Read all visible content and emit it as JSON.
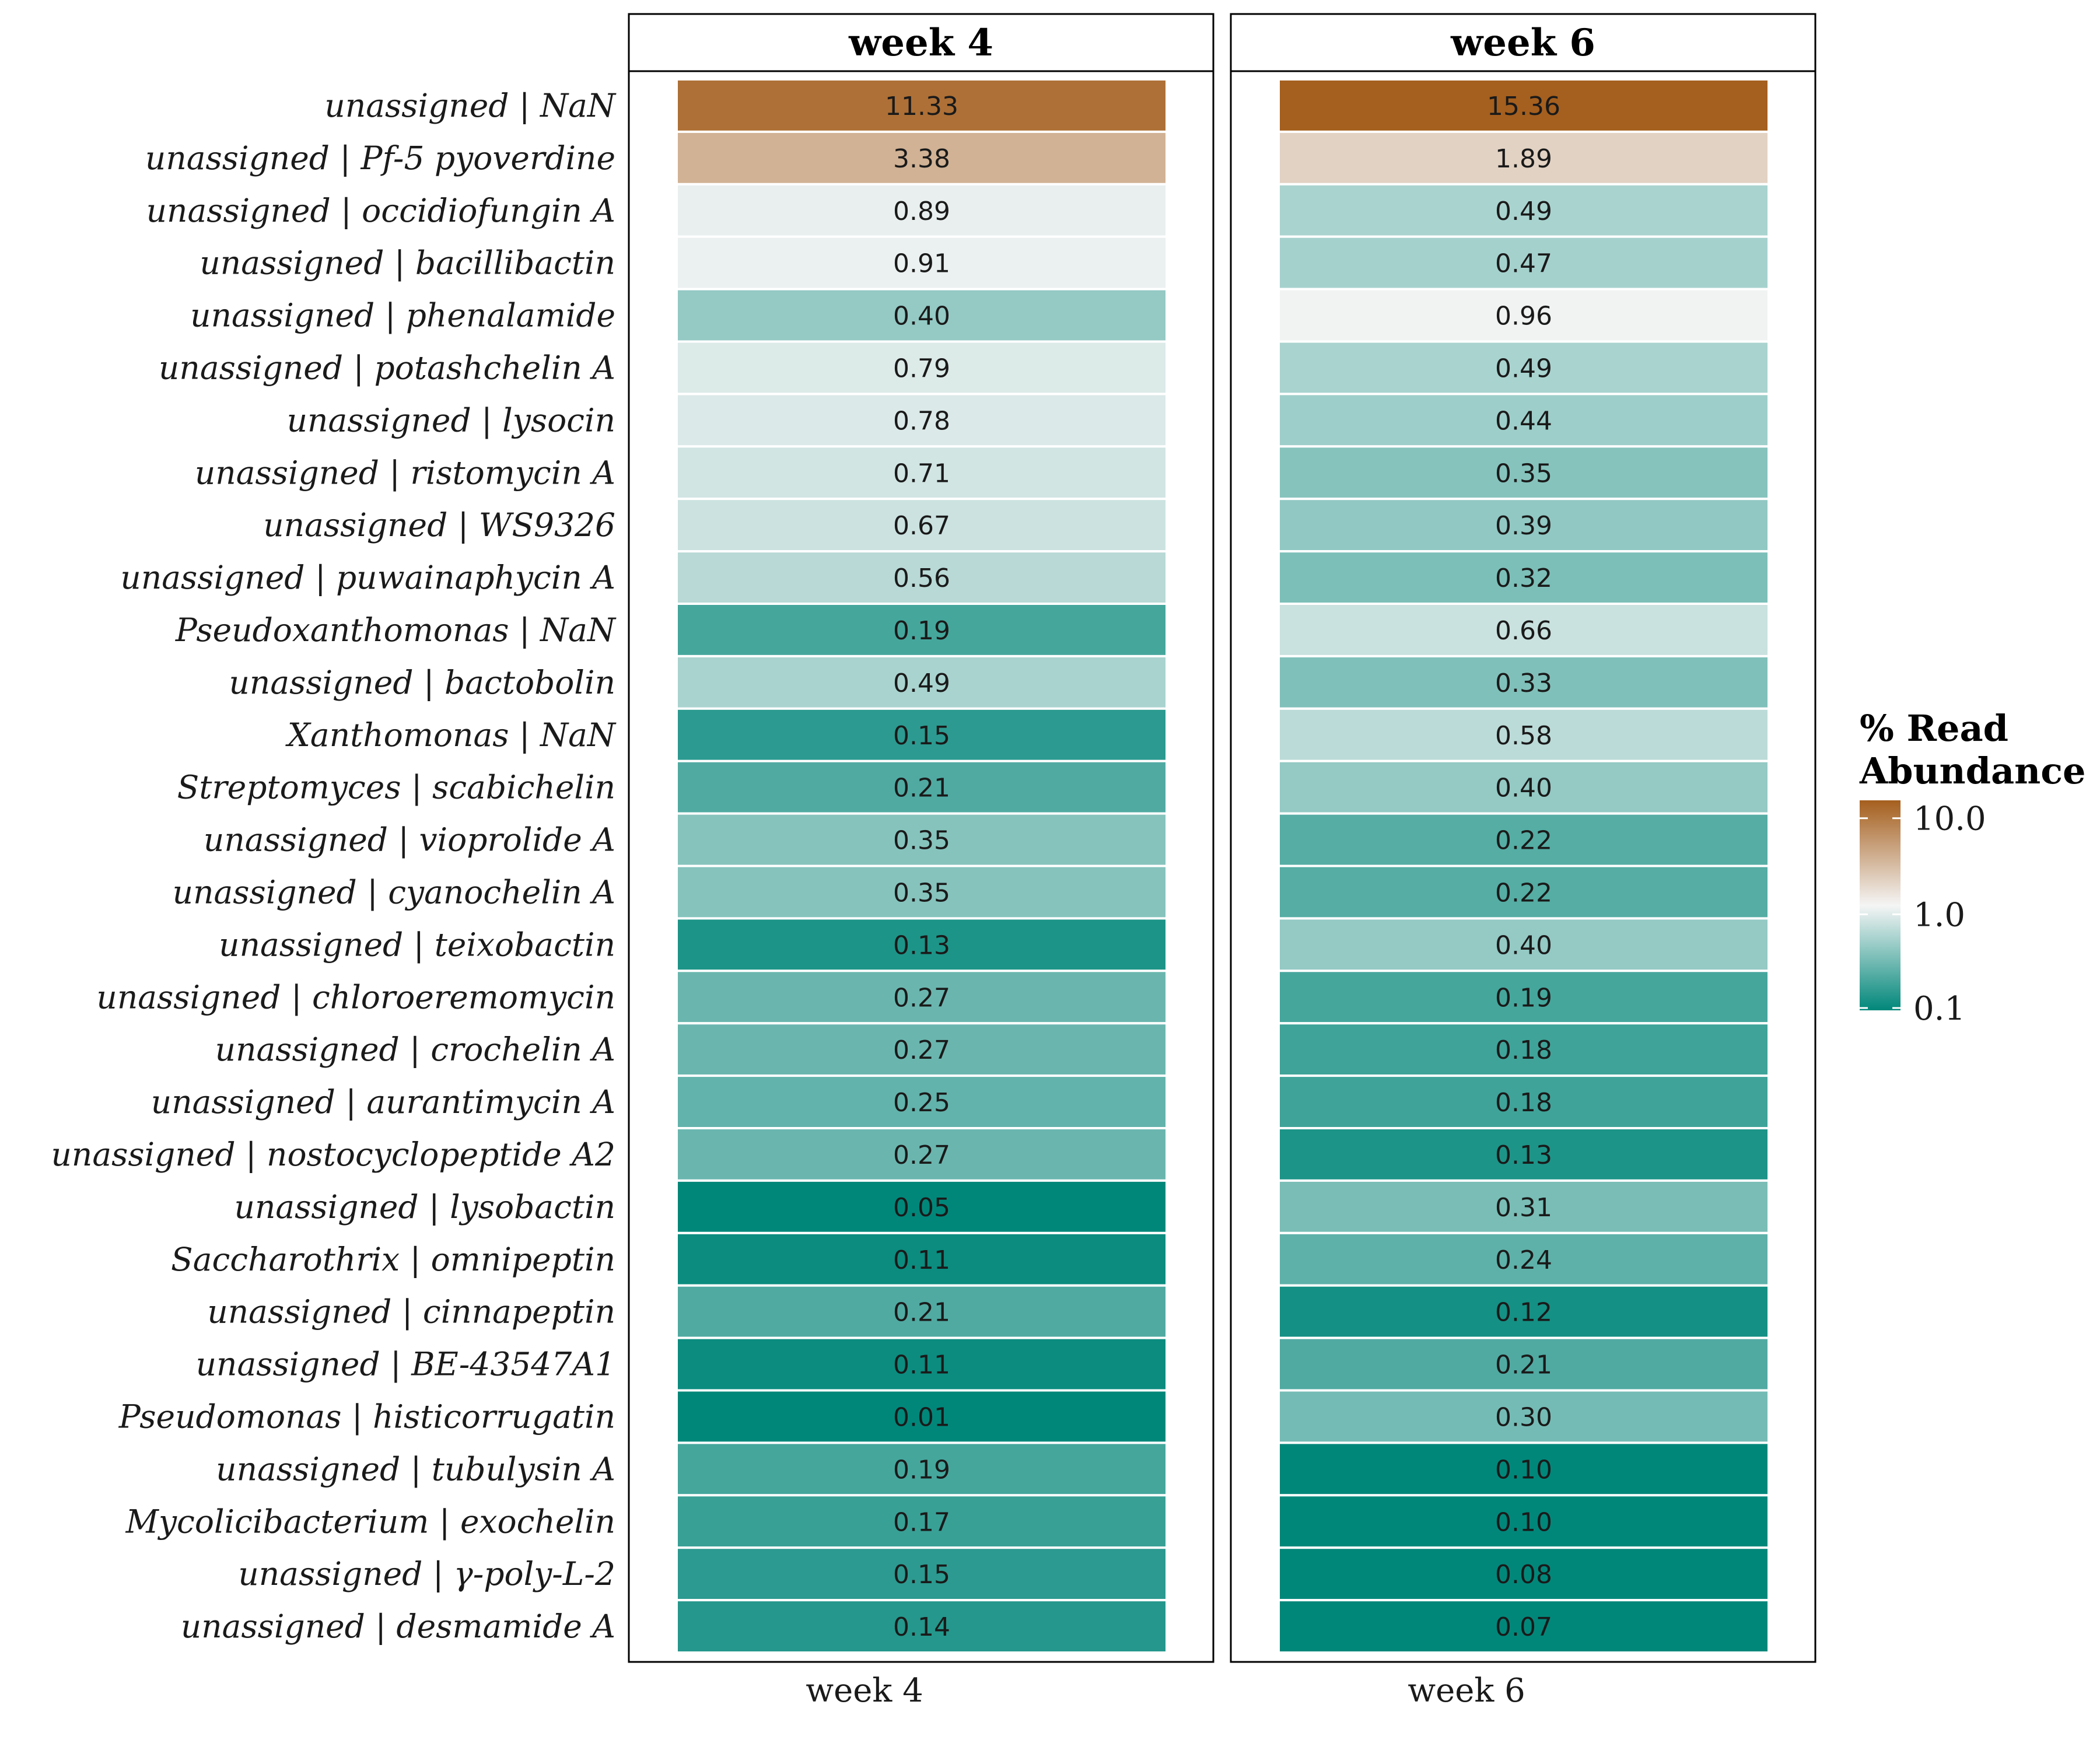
{
  "chart_data": {
    "type": "heatmap",
    "facets": [
      "week 4",
      "week 6"
    ],
    "x_tick_labels": [
      "week 4",
      "week 6"
    ],
    "rows": [
      "unassigned | NaN",
      "unassigned | Pf-5 pyoverdine",
      "unassigned | occidiofungin A",
      "unassigned | bacillibactin",
      "unassigned | phenalamide",
      "unassigned | potashchelin A",
      "unassigned | lysocin",
      "unassigned | ristomycin A",
      "unassigned | WS9326",
      "unassigned | puwainaphycin A",
      "Pseudoxanthomonas | NaN",
      "unassigned | bactobolin",
      "Xanthomonas | NaN",
      "Streptomyces | scabichelin",
      "unassigned | vioprolide A",
      "unassigned | cyanochelin A",
      "unassigned | teixobactin",
      "unassigned | chloroeremomycin",
      "unassigned | crochelin A",
      "unassigned | aurantimycin A",
      "unassigned | nostocyclopeptide A2",
      "unassigned | lysobactin",
      "Saccharothrix | omnipeptin",
      "unassigned | cinnapeptin",
      "unassigned | BE-43547A1",
      "Pseudomonas | histicorrugatin",
      "unassigned | tubulysin A",
      "Mycolicibacterium | exochelin",
      "unassigned | γ-poly-L-2",
      "unassigned | desmamide A"
    ],
    "series": [
      {
        "name": "week 4",
        "values": [
          "11.33",
          "3.38",
          "0.89",
          "0.91",
          "0.40",
          "0.79",
          "0.78",
          "0.71",
          "0.67",
          "0.56",
          "0.19",
          "0.49",
          "0.15",
          "0.21",
          "0.35",
          "0.35",
          "0.13",
          "0.27",
          "0.27",
          "0.25",
          "0.27",
          "0.05",
          "0.11",
          "0.21",
          "0.11",
          "0.01",
          "0.19",
          "0.17",
          "0.15",
          "0.14"
        ]
      },
      {
        "name": "week 6",
        "values": [
          "15.36",
          "1.89",
          "0.49",
          "0.47",
          "0.96",
          "0.49",
          "0.44",
          "0.35",
          "0.39",
          "0.32",
          "0.66",
          "0.33",
          "0.58",
          "0.40",
          "0.22",
          "0.22",
          "0.40",
          "0.19",
          "0.18",
          "0.18",
          "0.13",
          "0.31",
          "0.24",
          "0.12",
          "0.21",
          "0.30",
          "0.10",
          "0.10",
          "0.08",
          "0.07"
        ]
      }
    ],
    "legend": {
      "title_lines": [
        "% Read",
        "Abundance"
      ],
      "ticks": [
        "10.0",
        "1.0",
        "0.1"
      ],
      "scale": "log10",
      "limits": [
        0.1,
        15.36
      ],
      "colors": {
        "low": "#01877a",
        "mid": "#f5f5f5",
        "high": "#a55f1e"
      },
      "placement": "right"
    },
    "grid": false
  }
}
